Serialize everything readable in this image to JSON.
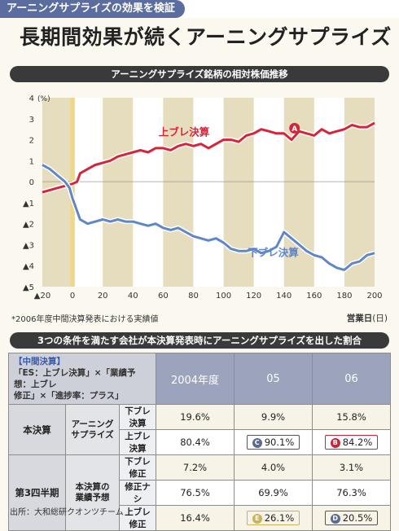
{
  "header": {
    "tag": "アーニングサプライズの効果を検証",
    "headline": "長期間効果が続くアーニングサプライズ"
  },
  "chart_section_title": "アーニングサプライズ銘柄の相対株価推移",
  "chart_data": {
    "type": "line",
    "yunit": "(%)",
    "xlabel": "営業日",
    "xlabel_suffix": "(日)",
    "ylim": [
      -5,
      4
    ],
    "xlim": [
      -20,
      200
    ],
    "y_ticks": [
      {
        "v": 4,
        "label": "4"
      },
      {
        "v": 3,
        "label": "3"
      },
      {
        "v": 2,
        "label": "2"
      },
      {
        "v": 1,
        "label": "1"
      },
      {
        "v": 0,
        "label": "0"
      },
      {
        "v": -1,
        "label": "▲1"
      },
      {
        "v": -2,
        "label": "▲2"
      },
      {
        "v": -3,
        "label": "▲3"
      },
      {
        "v": -4,
        "label": "▲4"
      },
      {
        "v": -5,
        "label": "▲5"
      }
    ],
    "x_ticks": [
      {
        "v": -20,
        "label": "▲20"
      },
      {
        "v": 0,
        "label": "0"
      },
      {
        "v": 20,
        "label": "20"
      },
      {
        "v": 40,
        "label": "40"
      },
      {
        "v": 60,
        "label": "60"
      },
      {
        "v": 80,
        "label": "80"
      },
      {
        "v": 100,
        "label": "100"
      },
      {
        "v": 120,
        "label": "120"
      },
      {
        "v": 140,
        "label": "140"
      },
      {
        "v": 160,
        "label": "160"
      },
      {
        "v": 180,
        "label": "180"
      },
      {
        "v": 200,
        "label": "200"
      }
    ],
    "grid": "alternating vertical bands",
    "series": [
      {
        "name": "上ブレ決算",
        "color": "#d6243a",
        "annotation": "A",
        "x": [
          -20,
          -15,
          -10,
          -5,
          0,
          3,
          5,
          10,
          15,
          20,
          25,
          30,
          35,
          40,
          45,
          50,
          55,
          60,
          65,
          70,
          75,
          80,
          85,
          90,
          95,
          100,
          105,
          110,
          115,
          120,
          125,
          130,
          135,
          140,
          145,
          150,
          155,
          160,
          165,
          170,
          175,
          180,
          185,
          190,
          195,
          200
        ],
        "y": [
          -0.5,
          -0.4,
          -0.3,
          -0.2,
          -0.1,
          0.0,
          0.4,
          0.6,
          0.8,
          0.9,
          1.0,
          1.2,
          1.3,
          1.4,
          1.5,
          1.4,
          1.6,
          1.6,
          1.5,
          1.7,
          1.8,
          1.7,
          1.8,
          1.6,
          1.8,
          2.0,
          2.0,
          1.9,
          2.2,
          2.3,
          2.5,
          2.4,
          2.3,
          2.3,
          2.0,
          2.4,
          2.3,
          2.2,
          2.5,
          2.3,
          2.4,
          2.5,
          2.7,
          2.6,
          2.6,
          2.8
        ]
      },
      {
        "name": "下ブレ決算",
        "color": "#5f86c6",
        "x": [
          -20,
          -15,
          -10,
          -5,
          -2,
          0,
          3,
          5,
          10,
          15,
          20,
          25,
          30,
          35,
          40,
          45,
          50,
          55,
          60,
          65,
          70,
          75,
          80,
          85,
          90,
          95,
          100,
          105,
          110,
          115,
          120,
          125,
          130,
          135,
          140,
          145,
          150,
          155,
          160,
          165,
          170,
          175,
          180,
          185,
          190,
          195,
          200
        ],
        "y": [
          0.8,
          0.6,
          0.3,
          0.0,
          -0.3,
          -0.8,
          -1.4,
          -1.8,
          -2.0,
          -1.9,
          -1.8,
          -1.9,
          -1.8,
          -1.9,
          -1.9,
          -2.0,
          -2.1,
          -2.0,
          -2.2,
          -2.3,
          -2.2,
          -2.4,
          -2.6,
          -2.7,
          -2.8,
          -2.7,
          -2.9,
          -3.2,
          -3.3,
          -3.3,
          -3.2,
          -3.4,
          -3.3,
          -3.1,
          -2.4,
          -2.7,
          -3.0,
          -3.3,
          -3.5,
          -3.6,
          -3.9,
          -4.1,
          -4.2,
          -3.9,
          -3.8,
          -3.5,
          -3.4
        ]
      }
    ]
  },
  "footnote": "*2006年度中間決算発表における実績値",
  "table_section_title": "3つの条件を満たす会社が本決算発表時にアーニングサプライズを出した割合",
  "table": {
    "header_title": "【中間決算】",
    "header_lines": [
      "「ES：上ブレ決算」×「業績予想：上ブレ",
      "修正」×「進捗率：プラス」"
    ],
    "years": [
      "2004年度",
      "05",
      "06"
    ],
    "groups": [
      {
        "label": "本決算",
        "sub": [
          "アーニング",
          "サプライズ"
        ],
        "rows": [
          {
            "label": "下ブレ決算",
            "values": [
              "19.6%",
              "9.9%",
              "15.8%"
            ]
          },
          {
            "label": "上ブレ決算",
            "values": [
              "80.4%",
              "90.1%",
              "84.2%"
            ]
          }
        ]
      },
      {
        "label": "第3四半期",
        "sub": [
          "本決算の",
          "業績予想"
        ],
        "rows": [
          {
            "label": "下ブレ修正",
            "values": [
              "7.2%",
              "4.0%",
              "3.1%"
            ]
          },
          {
            "label": "修正ナシ",
            "values": [
              "76.5%",
              "69.9%",
              "76.3%"
            ]
          },
          {
            "label": "上ブレ修正",
            "values": [
              "16.4%",
              "26.1%",
              "20.5%"
            ]
          }
        ]
      }
    ],
    "badges": {
      "C": "C",
      "B": "B",
      "E": "E",
      "D": "D"
    }
  },
  "source": "出所：大和総研クオンツチーム"
}
